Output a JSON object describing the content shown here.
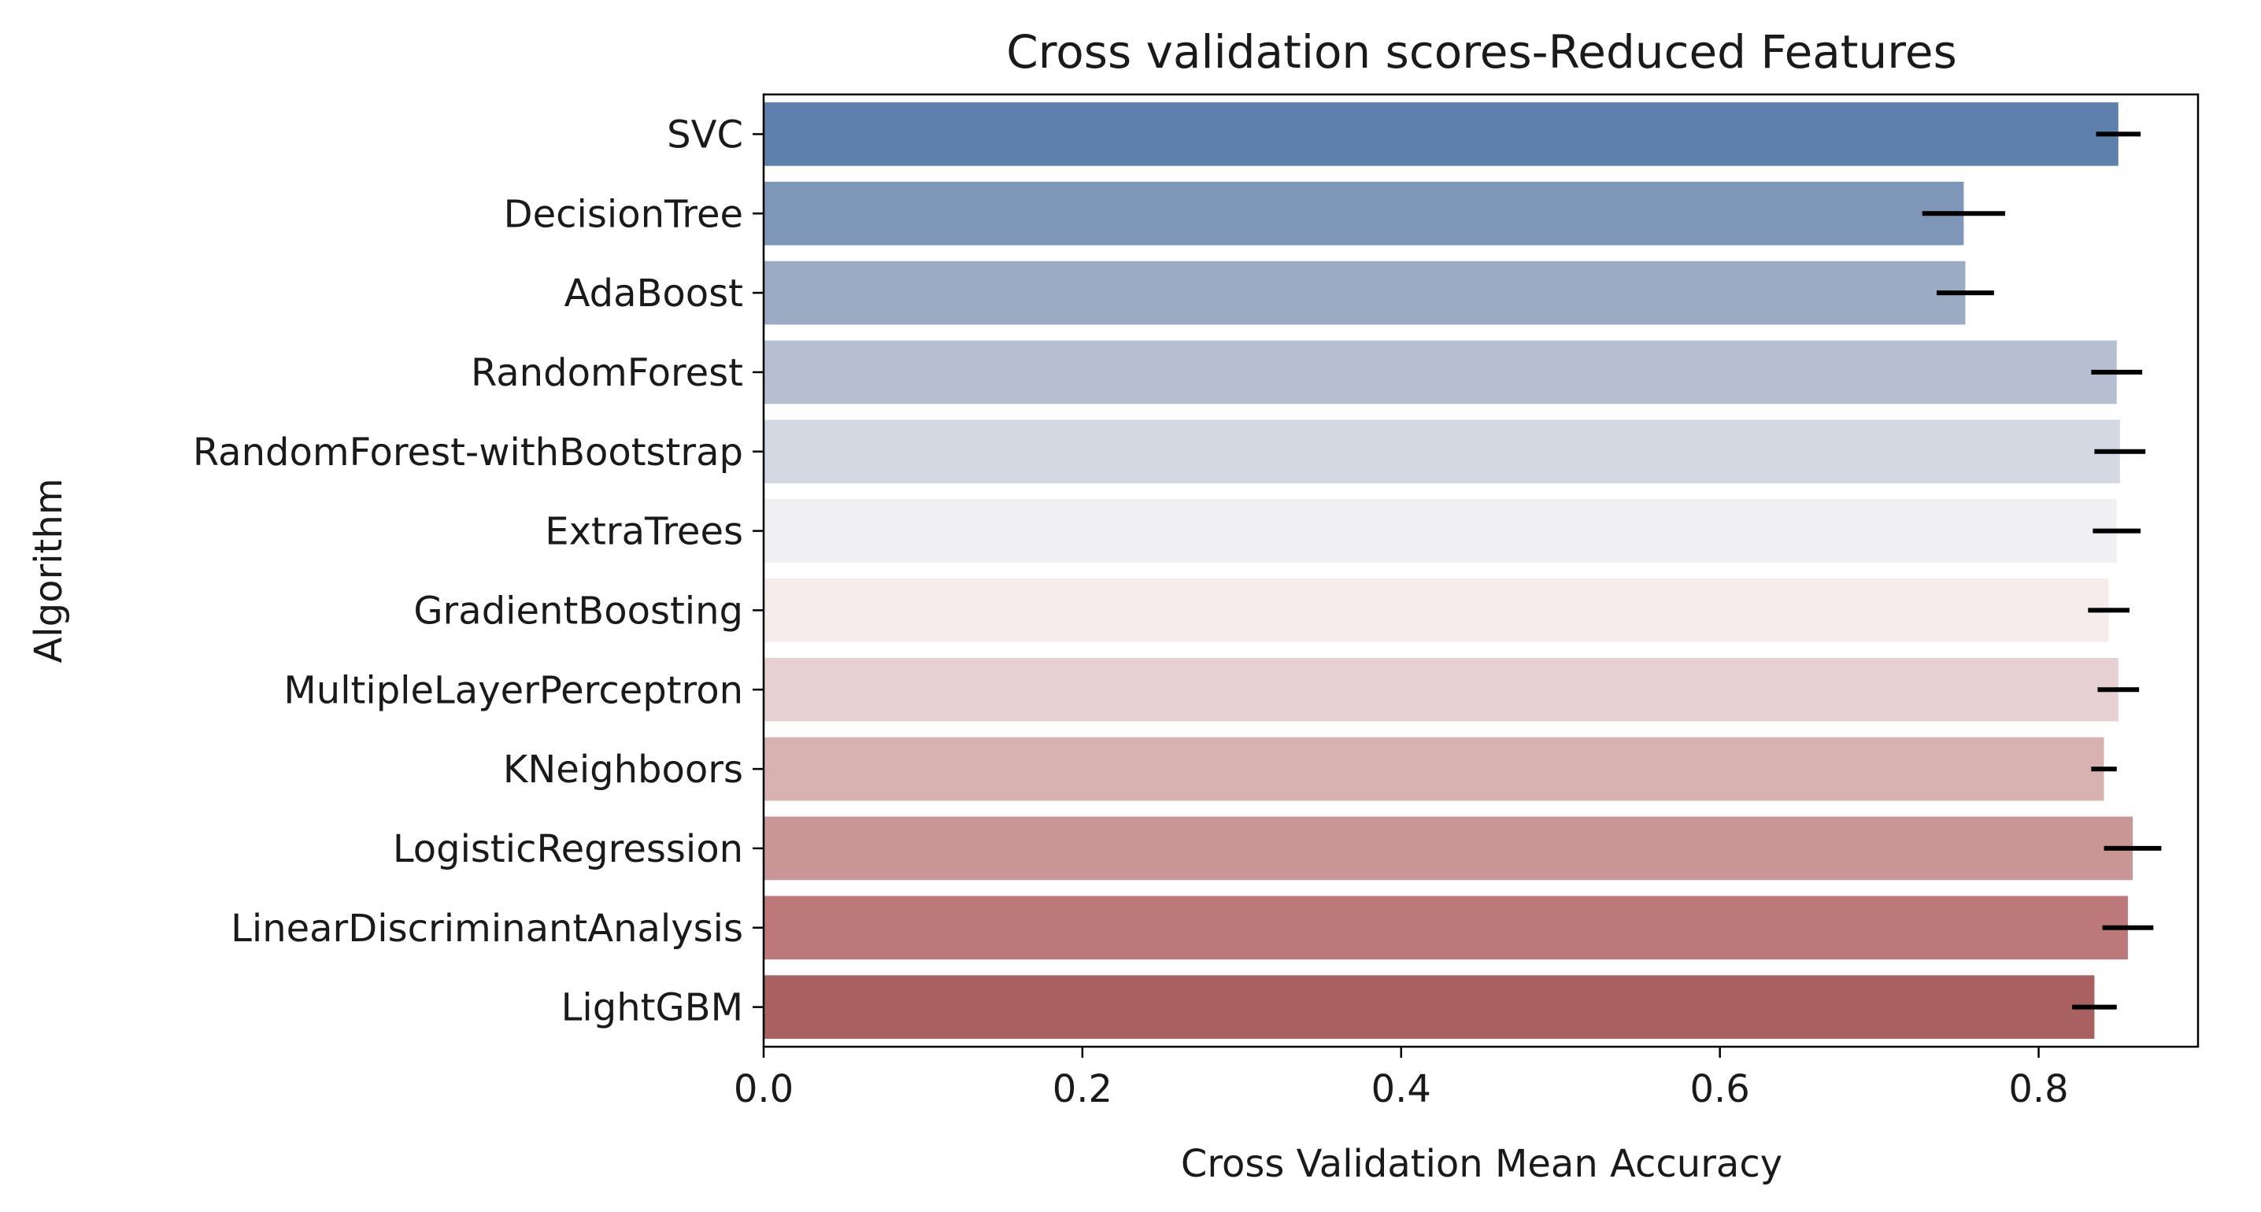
{
  "chart_data": {
    "type": "bar",
    "orientation": "horizontal",
    "title": "Cross validation scores-Reduced Features",
    "xlabel": "Cross Validation Mean Accuracy",
    "ylabel": "Algorithm",
    "xlim": [
      0,
      0.9
    ],
    "xticks": [
      "0.0",
      "0.2",
      "0.4",
      "0.6",
      "0.8"
    ],
    "grid": false,
    "legend": "none",
    "categories": [
      "SVC",
      "DecisionTree",
      "AdaBoost",
      "RandomForest",
      "RandomForest-withBootstrap",
      "ExtraTrees",
      "GradientBoosting",
      "MultipleLayerPerceptron",
      "KNeighboors",
      "LogisticRegression",
      "LinearDiscriminantAnalysis",
      "LightGBM"
    ],
    "values": [
      0.85,
      0.753,
      0.754,
      0.849,
      0.851,
      0.849,
      0.844,
      0.85,
      0.841,
      0.859,
      0.856,
      0.835
    ],
    "errors": [
      0.014,
      0.026,
      0.018,
      0.016,
      0.016,
      0.015,
      0.013,
      0.013,
      0.008,
      0.018,
      0.016,
      0.014
    ],
    "colors": [
      "#5e80ad",
      "#7e97b8",
      "#9aabc3",
      "#b5bfd1",
      "#d4d8e2",
      "#f0eff2",
      "#f6ecec",
      "#e6d0d1",
      "#d8b1b1",
      "#c99695",
      "#bd7979",
      "#a86061"
    ],
    "error_color": "#000000"
  }
}
